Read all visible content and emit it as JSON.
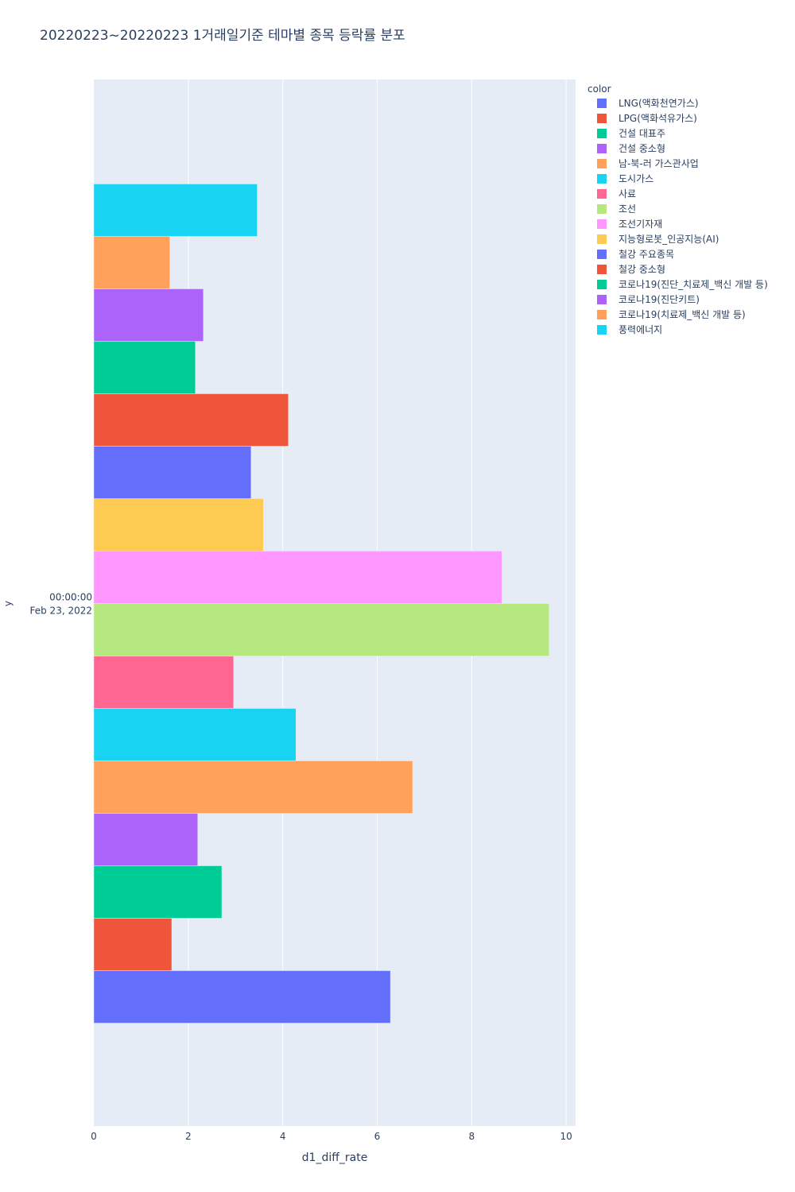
{
  "chart_data": {
    "type": "bar",
    "orientation": "horizontal",
    "title": "20220223~20220223 1거래일기준 테마별 종목 등락률 분포",
    "xlabel": "d1_diff_rate",
    "ylabel": "y",
    "xlim": [
      0,
      10.2
    ],
    "xticks": [
      0,
      2,
      4,
      6,
      8,
      10
    ],
    "y_tick_label": [
      "00:00:00",
      "Feb 23, 2022"
    ],
    "legend_title": "color",
    "legend_position": "top-right",
    "grid": true,
    "series": [
      {
        "name": "LNG(액화천연가스)",
        "value": 6.28,
        "color": "#636efa"
      },
      {
        "name": "LPG(액화석유가스)",
        "value": 1.65,
        "color": "#EF553B"
      },
      {
        "name": "건설 대표주",
        "value": 2.71,
        "color": "#00cc96"
      },
      {
        "name": "건설 중소형",
        "value": 2.2,
        "color": "#ab63fa"
      },
      {
        "name": "남-북-러 가스관사업",
        "value": 6.75,
        "color": "#FFA15A"
      },
      {
        "name": "도시가스",
        "value": 4.28,
        "color": "#19d3f3"
      },
      {
        "name": "사료",
        "value": 2.96,
        "color": "#FF6692"
      },
      {
        "name": "조선",
        "value": 9.64,
        "color": "#B6E880"
      },
      {
        "name": "조선기자재",
        "value": 8.64,
        "color": "#FF97FF"
      },
      {
        "name": "지능형로봇_인공지능(AI)",
        "value": 3.59,
        "color": "#FECB52"
      },
      {
        "name": "철강 주요종목",
        "value": 3.33,
        "color": "#636efa"
      },
      {
        "name": "철강 중소형",
        "value": 4.12,
        "color": "#EF553B"
      },
      {
        "name": "코로나19(진단_치료제_백신 개발 등)",
        "value": 2.15,
        "color": "#00cc96"
      },
      {
        "name": "코로나19(진단키트)",
        "value": 2.32,
        "color": "#ab63fa"
      },
      {
        "name": "코로나19(치료제_백신 개발 등)",
        "value": 1.61,
        "color": "#FFA15A"
      },
      {
        "name": "풍력에너지",
        "value": 3.46,
        "color": "#19d3f3"
      }
    ]
  }
}
